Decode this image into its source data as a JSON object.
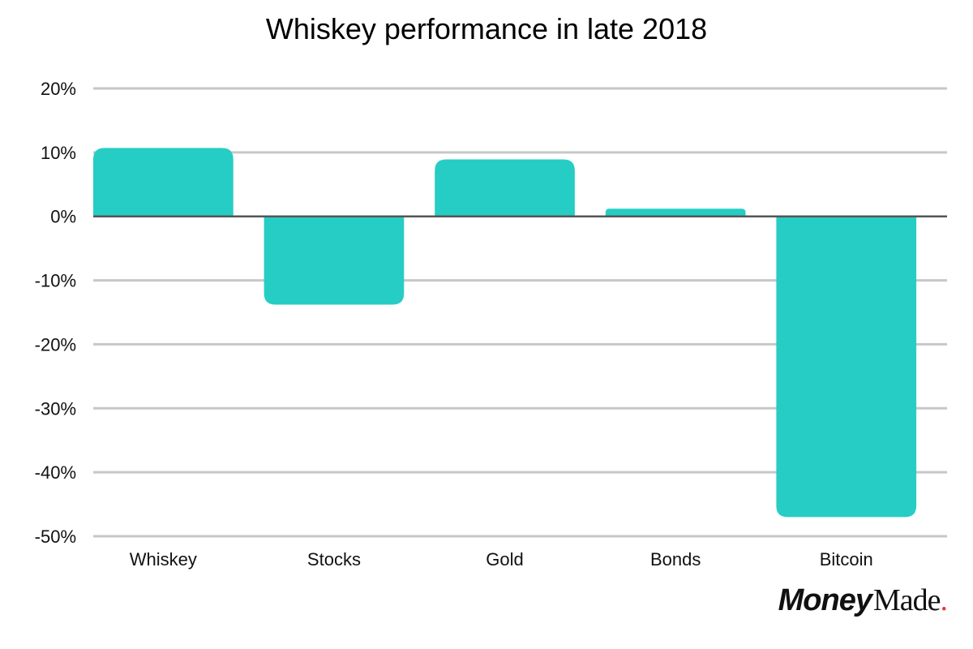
{
  "chart_data": {
    "type": "bar",
    "title": "Whiskey performance in late 2018",
    "categories": [
      "Whiskey",
      "Stocks",
      "Gold",
      "Bonds",
      "Bitcoin"
    ],
    "values": [
      10.7,
      -13.8,
      8.9,
      1.2,
      -47.0
    ],
    "ylim": [
      -50,
      20
    ],
    "yticks": [
      20,
      10,
      0,
      -10,
      -20,
      -30,
      -40,
      -50
    ],
    "ytick_labels": [
      "20%",
      "10%",
      "0%",
      "-10%",
      "-20%",
      "-30%",
      "-40%",
      "-50%"
    ],
    "xlabel": "",
    "ylabel": "",
    "grid": true,
    "legend": "none"
  },
  "colors": {
    "bar": "#26cdc4",
    "grid": "#c7c7c7",
    "zero_line": "#555555",
    "brand_dot": "#e23b3b"
  },
  "logo": {
    "part1": "Money",
    "part2": "Made",
    "dot": "."
  }
}
